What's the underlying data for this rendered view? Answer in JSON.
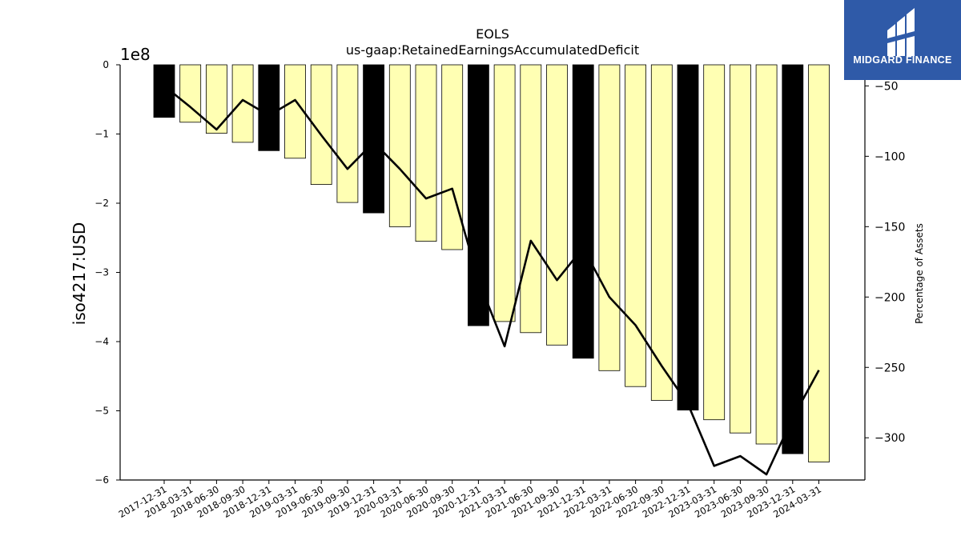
{
  "header": {
    "title": "EOLS",
    "subtitle": "us-gaap:RetainedEarningsAccumulatedDeficit"
  },
  "brand": {
    "name": "MIDGARD FINANCE",
    "color": "#2f5aa8",
    "logo_icon": "midgard-logo-icon"
  },
  "chart_data": {
    "type": "bar",
    "title": "EOLS",
    "subtitle": "us-gaap:RetainedEarningsAccumulatedDeficit",
    "ylabel": "iso4217:USD",
    "y2label": "Percentage of Assets",
    "y_offset_label": "1e8",
    "ylim": [
      -6,
      0
    ],
    "y2lim": [
      -330,
      -35
    ],
    "yticks": [
      0,
      -1,
      -2,
      -3,
      -4,
      -5,
      -6
    ],
    "y2ticks": [
      -50,
      -100,
      -150,
      -200,
      -250,
      -300
    ],
    "grid": false,
    "colors": {
      "bar_quarter": "#ffffb3",
      "bar_year_end": "#000000",
      "line": "#000000"
    },
    "categories": [
      "2017-12-31",
      "2018-03-31",
      "2018-06-30",
      "2018-09-30",
      "2018-12-31",
      "2019-03-31",
      "2019-06-30",
      "2019-09-30",
      "2019-12-31",
      "2020-03-31",
      "2020-06-30",
      "2020-09-30",
      "2020-12-31",
      "2021-03-31",
      "2021-06-30",
      "2021-09-30",
      "2021-12-31",
      "2022-03-31",
      "2022-06-30",
      "2022-09-30",
      "2022-12-31",
      "2023-03-31",
      "2023-06-30",
      "2023-09-30",
      "2023-12-31",
      "2024-03-31"
    ],
    "series": [
      {
        "role": "bar",
        "axis": "left",
        "values": [
          -0.76,
          -0.83,
          -0.99,
          -1.12,
          -1.24,
          -1.35,
          -1.73,
          -1.99,
          -2.14,
          -2.34,
          -2.55,
          -2.67,
          -3.77,
          -3.71,
          -3.87,
          -4.05,
          -4.24,
          -4.42,
          -4.65,
          -4.85,
          -4.99,
          -5.13,
          -5.32,
          -5.48,
          -5.62,
          -5.74
        ],
        "year_end": [
          true,
          false,
          false,
          false,
          true,
          false,
          false,
          false,
          true,
          false,
          false,
          false,
          true,
          false,
          false,
          false,
          true,
          false,
          false,
          false,
          true,
          false,
          false,
          false,
          true,
          false
        ]
      },
      {
        "role": "line",
        "axis": "right",
        "values": [
          -50,
          -65,
          -81,
          -60,
          -71,
          -60,
          -85,
          -109,
          -90,
          -109,
          -130,
          -123,
          -188,
          -235,
          -160,
          -188,
          -165,
          -200,
          -220,
          -249,
          -276,
          -320,
          -313,
          -326,
          -286,
          -252
        ]
      }
    ]
  }
}
